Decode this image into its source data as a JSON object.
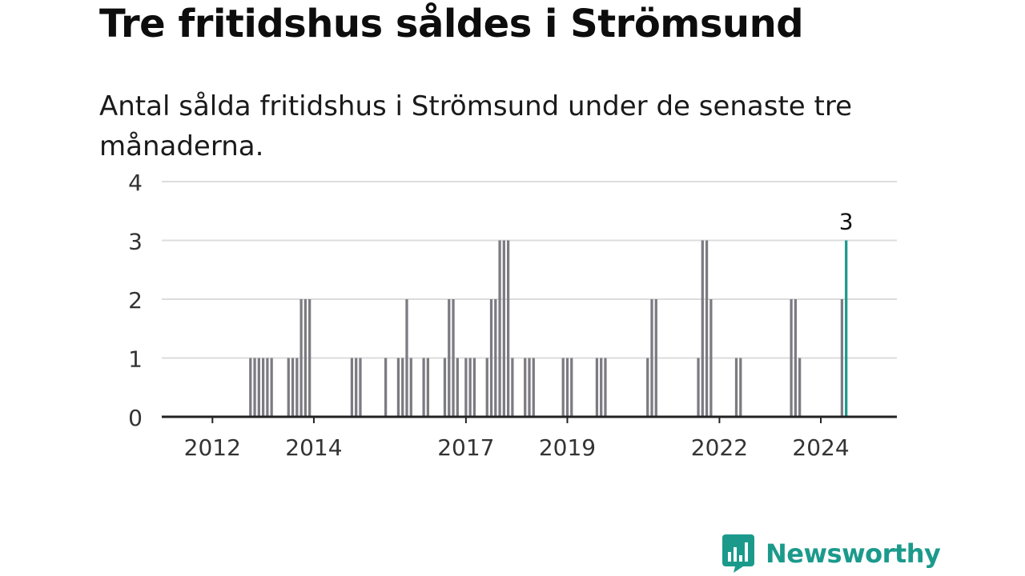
{
  "title": "Tre fritidshus såldes i Strömsund",
  "subtitle": "Antal sålda fritidshus i Strömsund under de senaste tre månaderna.",
  "brand": {
    "name": "Newsworthy",
    "icon": "newsworthy-logo-icon"
  },
  "colors": {
    "bar": "#7c7b82",
    "highlight": "#1b9a8c",
    "grid": "#dcdcdc",
    "axis": "#222222",
    "brand": "#1b9a8c"
  },
  "chart_data": {
    "type": "bar",
    "x_type": "month",
    "ylim": [
      0,
      4
    ],
    "yticks": [
      0,
      1,
      2,
      3,
      4
    ],
    "xlim": [
      "2011-01",
      "2025-07"
    ],
    "xticks": [
      {
        "label": "2012",
        "month": "2012-01"
      },
      {
        "label": "2014",
        "month": "2014-01"
      },
      {
        "label": "2017",
        "month": "2017-01"
      },
      {
        "label": "2019",
        "month": "2019-01"
      },
      {
        "label": "2022",
        "month": "2022-01"
      },
      {
        "label": "2024",
        "month": "2024-01"
      }
    ],
    "grid": true,
    "highlight_label": "3",
    "bars": [
      {
        "month": "2012-10",
        "value": 1
      },
      {
        "month": "2012-11",
        "value": 1
      },
      {
        "month": "2012-12",
        "value": 1
      },
      {
        "month": "2013-01",
        "value": 1
      },
      {
        "month": "2013-02",
        "value": 1
      },
      {
        "month": "2013-03",
        "value": 1
      },
      {
        "month": "2013-07",
        "value": 1
      },
      {
        "month": "2013-08",
        "value": 1
      },
      {
        "month": "2013-09",
        "value": 1
      },
      {
        "month": "2013-10",
        "value": 2
      },
      {
        "month": "2013-11",
        "value": 2
      },
      {
        "month": "2013-12",
        "value": 2
      },
      {
        "month": "2014-10",
        "value": 1
      },
      {
        "month": "2014-11",
        "value": 1
      },
      {
        "month": "2014-12",
        "value": 1
      },
      {
        "month": "2015-06",
        "value": 1
      },
      {
        "month": "2015-09",
        "value": 1
      },
      {
        "month": "2015-10",
        "value": 1
      },
      {
        "month": "2015-11",
        "value": 2
      },
      {
        "month": "2015-12",
        "value": 1
      },
      {
        "month": "2016-03",
        "value": 1
      },
      {
        "month": "2016-04",
        "value": 1
      },
      {
        "month": "2016-08",
        "value": 1
      },
      {
        "month": "2016-09",
        "value": 2
      },
      {
        "month": "2016-10",
        "value": 2
      },
      {
        "month": "2016-11",
        "value": 1
      },
      {
        "month": "2017-01",
        "value": 1
      },
      {
        "month": "2017-02",
        "value": 1
      },
      {
        "month": "2017-03",
        "value": 1
      },
      {
        "month": "2017-06",
        "value": 1
      },
      {
        "month": "2017-07",
        "value": 2
      },
      {
        "month": "2017-08",
        "value": 2
      },
      {
        "month": "2017-09",
        "value": 3
      },
      {
        "month": "2017-10",
        "value": 3
      },
      {
        "month": "2017-11",
        "value": 3
      },
      {
        "month": "2017-12",
        "value": 1
      },
      {
        "month": "2018-03",
        "value": 1
      },
      {
        "month": "2018-04",
        "value": 1
      },
      {
        "month": "2018-05",
        "value": 1
      },
      {
        "month": "2018-12",
        "value": 1
      },
      {
        "month": "2019-01",
        "value": 1
      },
      {
        "month": "2019-02",
        "value": 1
      },
      {
        "month": "2019-08",
        "value": 1
      },
      {
        "month": "2019-09",
        "value": 1
      },
      {
        "month": "2019-10",
        "value": 1
      },
      {
        "month": "2020-08",
        "value": 1
      },
      {
        "month": "2020-09",
        "value": 2
      },
      {
        "month": "2020-10",
        "value": 2
      },
      {
        "month": "2021-08",
        "value": 1
      },
      {
        "month": "2021-09",
        "value": 3
      },
      {
        "month": "2021-10",
        "value": 3
      },
      {
        "month": "2021-11",
        "value": 2
      },
      {
        "month": "2022-05",
        "value": 1
      },
      {
        "month": "2022-06",
        "value": 1
      },
      {
        "month": "2023-06",
        "value": 2
      },
      {
        "month": "2023-07",
        "value": 2
      },
      {
        "month": "2023-08",
        "value": 1
      },
      {
        "month": "2024-06",
        "value": 2
      },
      {
        "month": "2024-07",
        "value": 3,
        "highlight": true
      }
    ]
  }
}
